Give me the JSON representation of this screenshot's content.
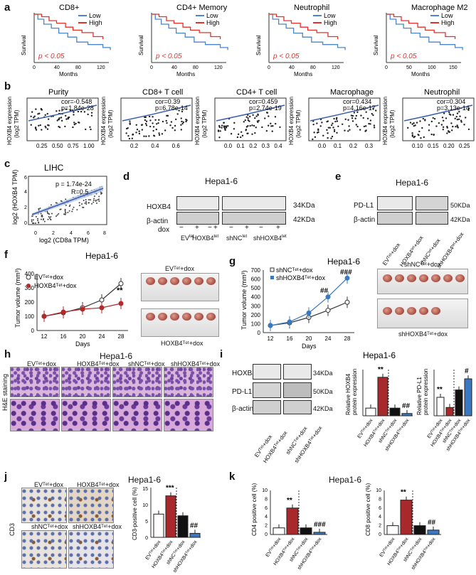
{
  "panels": {
    "a": "a",
    "b": "b",
    "c": "c",
    "d": "d",
    "e": "e",
    "f": "f",
    "g": "g",
    "h": "h",
    "i": "i",
    "j": "j",
    "k": "k"
  },
  "a": {
    "plots": [
      {
        "title": "CD8+"
      },
      {
        "title": "CD4+ Memory"
      },
      {
        "title": "Neutrophil"
      },
      {
        "title": "Macrophage M2"
      }
    ],
    "legend_low": "Low",
    "legend_high": "High",
    "pval": "p < 0.05",
    "xlabel": "Months",
    "ylabel": "Survival",
    "ticks_x": [
      "0",
      "40",
      "80",
      "120"
    ],
    "ticks_x2": [
      "0",
      "50",
      "100",
      "150"
    ],
    "ticks_y": [
      "0",
      "50",
      "100"
    ],
    "colors": {
      "low": "#4a86c8",
      "high": "#e8302a",
      "pval": "#e8302a"
    }
  },
  "b": {
    "ylabel": "HOXB4 expression",
    "ylabel2": "(log2 TPM)",
    "plots": [
      {
        "title": "Purity",
        "cor": "cor=-0.548",
        "p": "p=1.84e-28",
        "ticks": [
          "0.25",
          "0.50",
          "0.75",
          "1.00"
        ]
      },
      {
        "title": "CD8+ T cell",
        "cor": "cor=0.39",
        "p": "p=6.78e-14",
        "ticks": [
          "0.2",
          "0.4",
          "0.6"
        ]
      },
      {
        "title": "CD4+ T cell",
        "cor": "cor=0.459",
        "p": "p=2.74e-19",
        "ticks": [
          "0.0",
          "0.1",
          "0.2",
          "0.3",
          "0.4"
        ]
      },
      {
        "title": "Macrophage",
        "cor": "cor=0.434",
        "p": "p=4.16e-17",
        "ticks": [
          "0.0",
          "0.1",
          "0.2",
          "0.3"
        ]
      },
      {
        "title": "Neutrophil",
        "cor": "cor=0.304",
        "p": "p=3.13e-14",
        "ticks": [
          "0.10",
          "0.15",
          "0.20",
          "0.25"
        ]
      }
    ],
    "yticks": [
      "0",
      "2",
      "4",
      "6"
    ]
  },
  "c": {
    "title": "LIHC",
    "p": "p = 1.74e-24",
    "r": "R=0.5",
    "xlabel": "log2 (CD8a TPM)",
    "ylabel": "log2 (HOXB4 TPM)",
    "xticks": [
      "0",
      "2",
      "4",
      "6",
      "8"
    ],
    "yticks": [
      "0",
      "2",
      "4",
      "6"
    ]
  },
  "d": {
    "title": "Hepa1-6",
    "rows": [
      "HOXB4",
      "β-actin"
    ],
    "kda": [
      "34KDa",
      "42KDa"
    ],
    "dox": "dox",
    "signs": [
      "−",
      "+",
      "−",
      "+",
      "−",
      "+",
      "−",
      "+"
    ],
    "groups": [
      "EV",
      "HOXB4",
      "shNC",
      "shHOXB4"
    ],
    "sup": "tet"
  },
  "e": {
    "title": "Hepa1-6",
    "rows": [
      "PD-L1",
      "β-actin"
    ],
    "kda": [
      "50KDa",
      "42KDa"
    ],
    "lanes": [
      "EVᵀᵉᵗ+dox",
      "HOXB4ᵗᵉᵗ+dox",
      "shNCᵗᵉᵗ+dox",
      "shHOXB4ᵗᵉᵗ+dox"
    ]
  },
  "f": {
    "title": "Hepa1-6",
    "ylabel": "Tumor volume (mm³)",
    "xlabel": "Days",
    "xticks": [
      "12",
      "16",
      "20",
      "24",
      "28"
    ],
    "yticks": [
      "0",
      "100",
      "200",
      "300",
      "400"
    ],
    "legend": [
      "EVᵀᵉᵗ+dox",
      "HOXB4ᵀᵉᵗ+dox"
    ],
    "sig": "**",
    "photo_top": "EVᵀᵉᵗ+dox",
    "photo_bottom": "HOXB4ᵀᵉᵗ+dox",
    "color": "#b22a2a",
    "chart_data": {
      "type": "line",
      "x": [
        12,
        16,
        20,
        24,
        28
      ],
      "series": [
        {
          "name": "EVTet+dox",
          "values": [
            100,
            125,
            160,
            215,
            330
          ]
        },
        {
          "name": "HOXB4Tet+dox",
          "values": [
            100,
            130,
            150,
            160,
            190
          ]
        }
      ],
      "ylim": [
        0,
        400
      ]
    }
  },
  "g": {
    "title": "Hepa1-6",
    "ylabel": "Tumor volume (mm³)",
    "xlabel": "Days",
    "xticks": [
      "12",
      "16",
      "20",
      "24",
      "28"
    ],
    "yticks": [
      "0",
      "100",
      "200",
      "300",
      "400",
      "500",
      "600",
      "700"
    ],
    "legend": [
      "shNCᵀᵉᵗ+dox",
      "shHOXB4ᵀᵉᵗ+dox"
    ],
    "sig1": "##",
    "sig2": "###",
    "photo_top": "shNCᵀᵉᵗ+dox",
    "photo_bottom": "shHOXB4ᵀᵉᵗ+dox",
    "color": "#3a78c0",
    "chart_data": {
      "type": "line",
      "x": [
        12,
        16,
        20,
        24,
        28
      ],
      "series": [
        {
          "name": "shNCTet+dox",
          "values": [
            80,
            110,
            170,
            250,
            340
          ]
        },
        {
          "name": "shHOXB4Tet+dox",
          "values": [
            80,
            120,
            220,
            400,
            610
          ]
        }
      ],
      "ylim": [
        0,
        700
      ]
    }
  },
  "h": {
    "title": "Hepa1-6",
    "cols": [
      "EVᵀᵉᵗ+dox",
      "HOXB4ᵀᵉᵗ+dox",
      "shNCᵀᵉᵗ+dox",
      "shHOXB4ᵀᵉᵗ+dox"
    ],
    "ylabel": "H&E staining"
  },
  "i": {
    "title": "Hepa1-6",
    "rows": [
      "HOXB4",
      "PD-L1",
      "β-actin"
    ],
    "kda": [
      "34KDa",
      "50KDa",
      "42KDa"
    ],
    "lanes": [
      "EVᵀᵉᵗ+dox",
      "HOXB4ᵀᵉᵗ+dox",
      "shNCᵀᵉᵗ+dox",
      "shHOXB4ᵀᵉᵗ+dox"
    ],
    "ylabel1": "Relative HOXB4",
    "ylabel1b": "protein expression",
    "ylabel2": "Relative PD-L1",
    "ylabel2b": "protein expression",
    "sig1": "**",
    "sig1b": "##",
    "sig2": "**",
    "sig2b": "#",
    "chart_data": [
      {
        "type": "bar",
        "categories": [
          "EV",
          "HOXB4",
          "shNC",
          "shHOXB4"
        ],
        "values": [
          1,
          5,
          1,
          0.3
        ],
        "ylim": [
          0,
          6
        ]
      },
      {
        "type": "bar",
        "categories": [
          "EV",
          "HOXB4",
          "shNC",
          "shHOXB4"
        ],
        "values": [
          1,
          0.45,
          1.4,
          2.0
        ],
        "ylim": [
          0,
          2.5
        ]
      }
    ]
  },
  "j": {
    "title": "Hepa1-6",
    "labels": [
      "EVᵀᵉᵗ+dox",
      "HOXB4ᵀᵉᵗ+dox",
      "shNCᵀᵉᵗ+dox",
      "shHOXB4ᵀᵉᵗ+dox"
    ],
    "ylabel_img": "CD3",
    "ylabel": "CD3-positive cell (%)",
    "yticks": [
      "0",
      "5",
      "10",
      "15"
    ],
    "sig1": "***",
    "sig2": "##",
    "chart_data": {
      "type": "bar",
      "categories": [
        "EV",
        "HOXB4",
        "shNC",
        "shHOXB4"
      ],
      "values": [
        7,
        12.5,
        6.5,
        1.2
      ],
      "ylim": [
        0,
        15
      ]
    }
  },
  "k": {
    "title": "Hepa1-6",
    "labels": [
      "EVᵀᵉᵗ+dox",
      "HOXB4ᵀᵉᵗ+dox",
      "shNCᵀᵉᵗ+dox",
      "shHOXB4ᵀᵉᵗ+dox"
    ],
    "ylabel1": "CD4 positive cell (%)",
    "ylabel2": "CD8 positive cell (%)",
    "yticks1": [
      "0",
      "2",
      "4",
      "6",
      "8",
      "10"
    ],
    "yticks2": [
      "0",
      "2",
      "4",
      "6",
      "8",
      "10"
    ],
    "sig1": "**",
    "sig1b": "###",
    "sig2": "**",
    "sig2b": "##",
    "chart_data": [
      {
        "type": "bar",
        "categories": [
          "EV",
          "HOXB4",
          "shNC",
          "shHOXB4"
        ],
        "values": [
          1.5,
          6,
          1.5,
          0.5
        ],
        "ylim": [
          0,
          10
        ]
      },
      {
        "type": "bar",
        "categories": [
          "EV",
          "HOXB4",
          "shNC",
          "shHOXB4"
        ],
        "values": [
          2,
          7.8,
          2,
          1
        ],
        "ylim": [
          0,
          10
        ]
      }
    ]
  }
}
